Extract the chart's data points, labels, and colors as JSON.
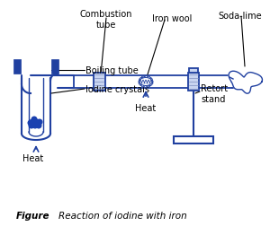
{
  "caption_bold": "Figure",
  "caption_italic": "Reaction of iodine with iron",
  "bg_color": "#ffffff",
  "line_color": "#2040a0",
  "fill_color": "#c8d4f0",
  "labels": {
    "combustion_tube": "Combustion\ntube",
    "iron_wool": "Iron wool",
    "soda_lime": "Soda-lime",
    "boiling_tube": "Boiling tube",
    "iodine_crystals": "Iodine crystals",
    "heat_bottom": "Heat",
    "heat_middle": "Heat",
    "retort_stand": "Retort\nstand"
  }
}
